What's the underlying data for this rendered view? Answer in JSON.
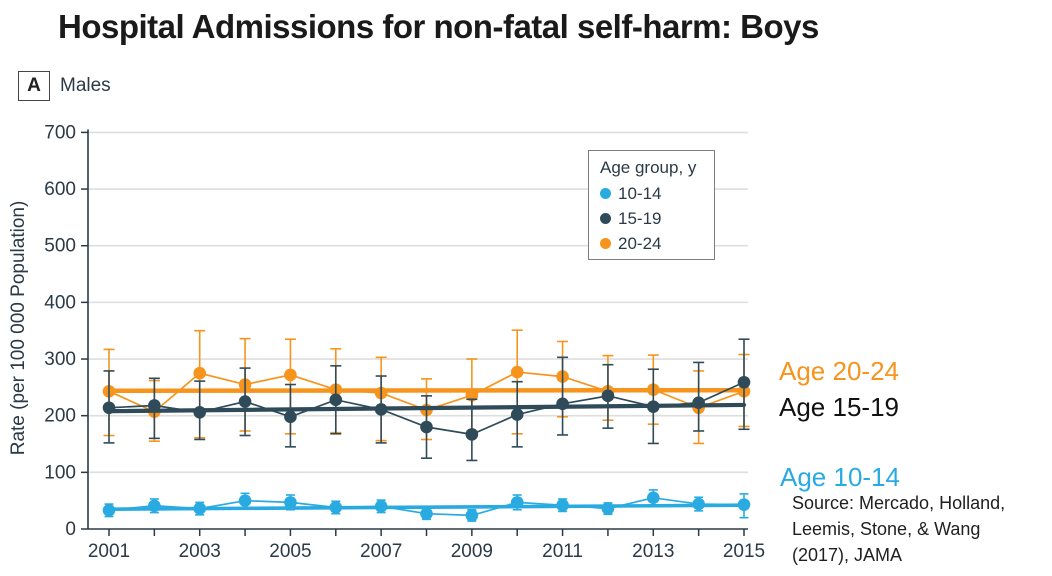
{
  "title": "Hospital Admissions for non-fatal self-harm: Boys",
  "panel": {
    "label": "A",
    "caption": "Males"
  },
  "colors": {
    "axis": "#2b3a46",
    "grid": "#dedede",
    "blue": "#29abe2",
    "dark": "#2f4b5a",
    "orange": "#f7941d"
  },
  "chart_data": {
    "type": "line",
    "title": "Hospital Admissions for non-fatal self-harm: Boys",
    "xlabel": "",
    "ylabel": "Rate (per 100 000 Population)",
    "ylim": [
      0,
      700
    ],
    "ytick_step": 100,
    "grid": true,
    "x": [
      2001,
      2002,
      2003,
      2004,
      2005,
      2006,
      2007,
      2008,
      2009,
      2010,
      2011,
      2012,
      2013,
      2014,
      2015
    ],
    "xtick_labels": [
      "2001",
      "2003",
      "2005",
      "2007",
      "2009",
      "2011",
      "2013",
      "2015"
    ],
    "legend": {
      "title": "Age group, y",
      "position": "top-right-inside"
    },
    "series": [
      {
        "name": "10-14",
        "label": "Age 10-14",
        "color": "#29abe2",
        "values": [
          33,
          41,
          36,
          50,
          47,
          38,
          40,
          27,
          24,
          47,
          42,
          36,
          55,
          44,
          43
        ],
        "ci_low": [
          22,
          29,
          25,
          37,
          34,
          27,
          29,
          17,
          14,
          34,
          31,
          26,
          41,
          32,
          20
        ],
        "ci_high": [
          44,
          53,
          47,
          63,
          60,
          49,
          51,
          37,
          34,
          60,
          53,
          46,
          69,
          56,
          62
        ],
        "trend": [
          35,
          42
        ]
      },
      {
        "name": "15-19",
        "label": "Age 15-19",
        "color": "#2f4b5a",
        "values": [
          214,
          218,
          206,
          225,
          198,
          228,
          211,
          180,
          167,
          202,
          221,
          235,
          216,
          223,
          259
        ],
        "ci_low": [
          152,
          160,
          158,
          165,
          145,
          168,
          152,
          125,
          121,
          145,
          166,
          178,
          151,
          173,
          176
        ],
        "ci_high": [
          279,
          266,
          261,
          284,
          255,
          288,
          270,
          235,
          229,
          260,
          303,
          290,
          282,
          294,
          335
        ],
        "trend": [
          208,
          219
        ]
      },
      {
        "name": "20-24",
        "label": "Age 20-24",
        "color": "#f7941d",
        "values": [
          243,
          207,
          275,
          255,
          272,
          246,
          240,
          210,
          236,
          277,
          269,
          243,
          246,
          214,
          243
        ],
        "ci_low": [
          165,
          155,
          161,
          173,
          168,
          170,
          156,
          158,
          173,
          168,
          198,
          192,
          185,
          151,
          181
        ],
        "ci_high": [
          317,
          262,
          350,
          336,
          335,
          318,
          303,
          265,
          300,
          351,
          331,
          306,
          307,
          279,
          308
        ],
        "trend": [
          244,
          245
        ]
      }
    ]
  },
  "source": {
    "lines": [
      "Source: Mercado, Holland,",
      "Leemis, Stone, & Wang",
      "(2017), JAMA"
    ]
  }
}
